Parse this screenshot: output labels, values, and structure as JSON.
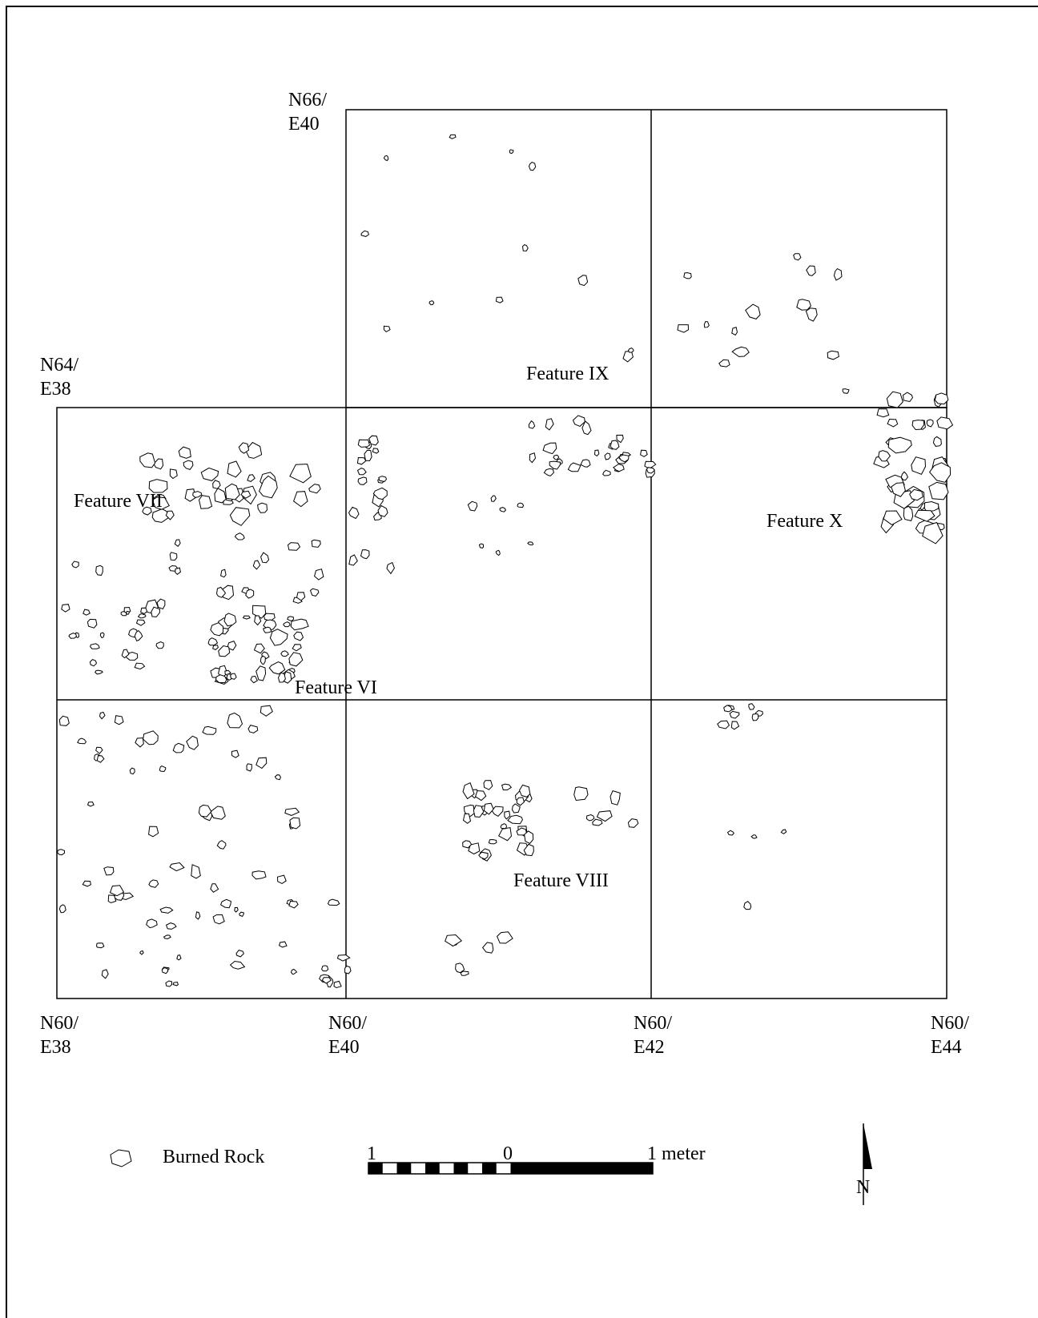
{
  "corner_labels": [
    {
      "lines": [
        "N66/",
        "E40"
      ]
    },
    {
      "lines": [
        "N64/",
        "E38"
      ]
    },
    {
      "lines": [
        "N60/",
        "E38"
      ]
    },
    {
      "lines": [
        "N60/",
        "E40"
      ]
    },
    {
      "lines": [
        "N60/",
        "E42"
      ]
    },
    {
      "lines": [
        "N60/",
        "E44"
      ]
    }
  ],
  "features": [
    "Feature IX",
    "Feature VII",
    "Feature X",
    "Feature VI",
    "Feature VIII"
  ],
  "legend": {
    "label": "Burned Rock"
  },
  "scale": {
    "labels": [
      "1",
      "0",
      "1 meter"
    ]
  },
  "north": "N"
}
